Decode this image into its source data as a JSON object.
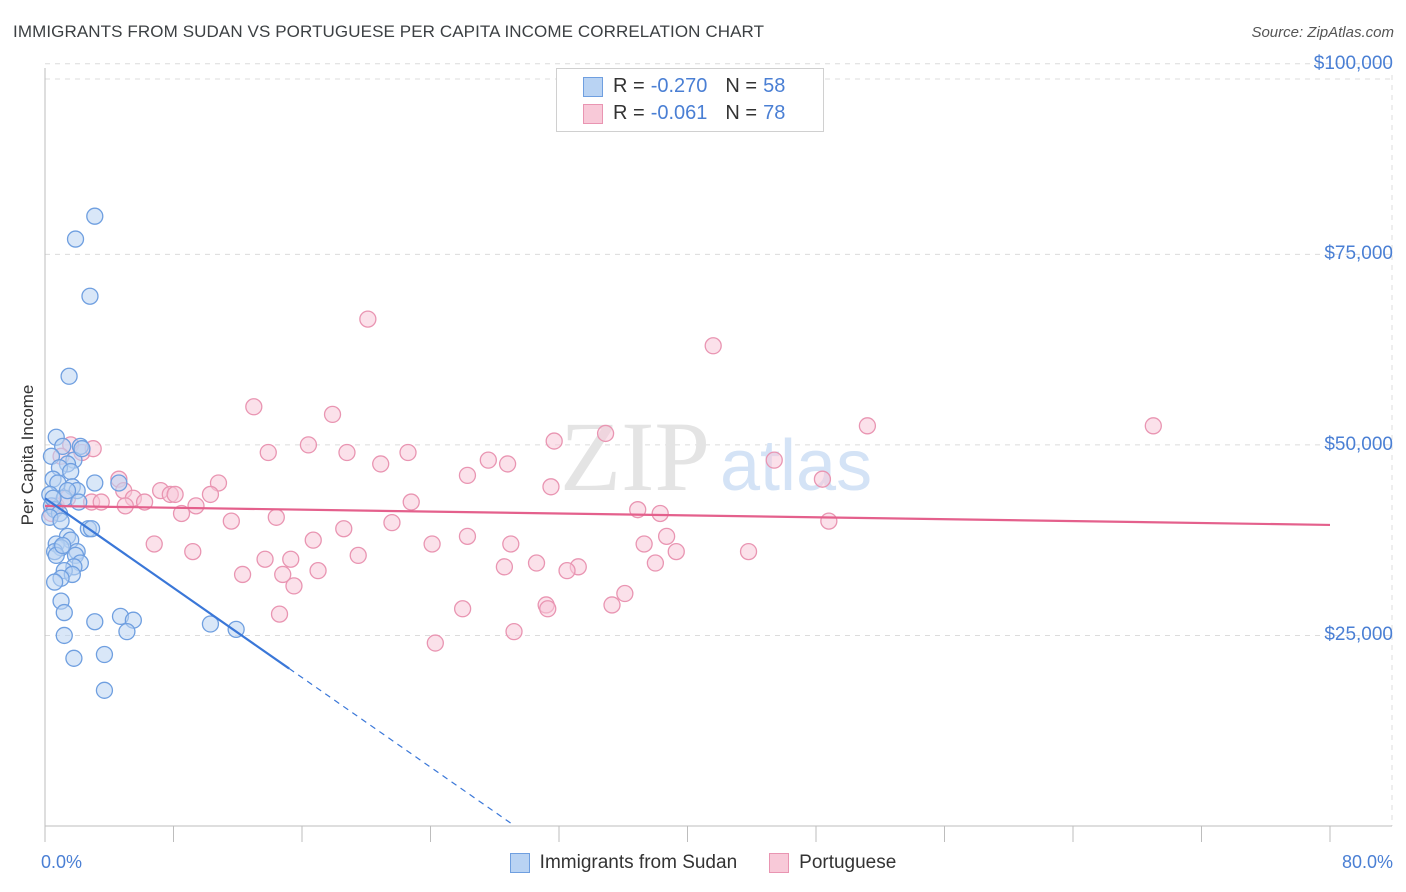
{
  "header": {
    "title": "IMMIGRANTS FROM SUDAN VS PORTUGUESE PER CAPITA INCOME CORRELATION CHART",
    "source": "Source: ZipAtlas.com"
  },
  "watermark": {
    "zip": "ZIP",
    "atlas": "atlas"
  },
  "stats": {
    "sudan": {
      "r_label": "R =",
      "r_value": "-0.270",
      "n_label": "N =",
      "n_value": "58"
    },
    "portuguese": {
      "r_label": "R =",
      "r_value": "-0.061",
      "n_label": "N =",
      "n_value": "78"
    }
  },
  "legend": {
    "sudan": "Immigrants from Sudan",
    "portuguese": "Portuguese"
  },
  "colors": {
    "sudan_fill": "#b9d3f3",
    "sudan_stroke": "#6f9fe0",
    "sudan_line": "#3a77d8",
    "portuguese_fill": "#f8c9d8",
    "portuguese_stroke": "#e995b2",
    "portuguese_line": "#e4608c",
    "tick_text": "#4a7fd4",
    "grid": "#dcdcdc"
  },
  "chart_data": {
    "type": "scatter",
    "title": "IMMIGRANTS FROM SUDAN VS PORTUGUESE PER CAPITA INCOME CORRELATION CHART",
    "xlabel": "",
    "ylabel": "Per Capita Income",
    "xlim": [
      0,
      80
    ],
    "ylim": [
      0,
      105000
    ],
    "x_tick_labels": [
      {
        "value": 0,
        "label": "0.0%"
      },
      {
        "value": 80,
        "label": "80.0%"
      }
    ],
    "y_tick_labels": [
      {
        "value": 25000,
        "label": "$25,000"
      },
      {
        "value": 50000,
        "label": "$50,000"
      },
      {
        "value": 75000,
        "label": "$75,000"
      },
      {
        "value": 100000,
        "label": "$100,000"
      }
    ],
    "grid": true,
    "series": [
      {
        "name": "Immigrants from Sudan",
        "r": -0.27,
        "n": 58,
        "trend": {
          "x0": 0,
          "y0": 43000,
          "x_solid_end": 15.2,
          "x_dash_end": 29.2,
          "slope": -1470
        },
        "points": [
          [
            3.1,
            80000
          ],
          [
            1.9,
            77000
          ],
          [
            2.8,
            69500
          ],
          [
            1.5,
            59000
          ],
          [
            0.7,
            51000
          ],
          [
            1.1,
            49800
          ],
          [
            2.2,
            49800
          ],
          [
            0.4,
            48500
          ],
          [
            1.8,
            48000
          ],
          [
            1.4,
            47500
          ],
          [
            0.9,
            47000
          ],
          [
            1.6,
            46500
          ],
          [
            0.5,
            45500
          ],
          [
            0.8,
            45000
          ],
          [
            3.1,
            45000
          ],
          [
            4.6,
            45000
          ],
          [
            1.7,
            44500
          ],
          [
            2.0,
            44000
          ],
          [
            0.3,
            43500
          ],
          [
            1.2,
            43000
          ],
          [
            2.1,
            42500
          ],
          [
            0.4,
            42000
          ],
          [
            0.6,
            41500
          ],
          [
            0.9,
            41000
          ],
          [
            0.3,
            40500
          ],
          [
            1.0,
            40000
          ],
          [
            2.7,
            39000
          ],
          [
            2.9,
            39000
          ],
          [
            1.4,
            38000
          ],
          [
            1.6,
            37500
          ],
          [
            0.7,
            37000
          ],
          [
            1.0,
            36500
          ],
          [
            0.6,
            36000
          ],
          [
            2.0,
            36000
          ],
          [
            0.7,
            35500
          ],
          [
            1.9,
            35500
          ],
          [
            2.2,
            34500
          ],
          [
            1.8,
            34000
          ],
          [
            1.2,
            33500
          ],
          [
            1.7,
            33000
          ],
          [
            1.0,
            32500
          ],
          [
            0.6,
            32000
          ],
          [
            1.0,
            29500
          ],
          [
            1.2,
            28000
          ],
          [
            4.7,
            27500
          ],
          [
            5.5,
            27000
          ],
          [
            3.1,
            26800
          ],
          [
            10.3,
            26500
          ],
          [
            11.9,
            25800
          ],
          [
            5.1,
            25500
          ],
          [
            1.2,
            25000
          ],
          [
            3.7,
            22500
          ],
          [
            1.8,
            22000
          ],
          [
            3.7,
            17800
          ],
          [
            1.4,
            44000
          ],
          [
            0.5,
            43000
          ],
          [
            2.3,
            49500
          ],
          [
            1.1,
            36800
          ]
        ]
      },
      {
        "name": "Portuguese",
        "r": -0.061,
        "n": 78,
        "trend": {
          "x0": 0,
          "y0": 42000,
          "x_end": 80,
          "y_end": 39500
        },
        "points": [
          [
            20.1,
            66500
          ],
          [
            41.6,
            63000
          ],
          [
            13.0,
            55000
          ],
          [
            17.9,
            54000
          ],
          [
            51.2,
            52500
          ],
          [
            69.0,
            52500
          ],
          [
            34.9,
            51500
          ],
          [
            31.7,
            50500
          ],
          [
            16.4,
            50000
          ],
          [
            1.6,
            50000
          ],
          [
            2.3,
            49000
          ],
          [
            13.9,
            49000
          ],
          [
            18.8,
            49000
          ],
          [
            22.6,
            49000
          ],
          [
            1.0,
            48500
          ],
          [
            27.6,
            48000
          ],
          [
            45.4,
            48000
          ],
          [
            20.9,
            47500
          ],
          [
            28.8,
            47500
          ],
          [
            26.3,
            46000
          ],
          [
            4.6,
            45500
          ],
          [
            48.4,
            45500
          ],
          [
            10.8,
            45000
          ],
          [
            31.5,
            44500
          ],
          [
            4.9,
            44000
          ],
          [
            7.2,
            44000
          ],
          [
            7.8,
            43500
          ],
          [
            8.1,
            43500
          ],
          [
            10.3,
            43500
          ],
          [
            5.5,
            43000
          ],
          [
            2.9,
            42500
          ],
          [
            3.5,
            42500
          ],
          [
            6.2,
            42500
          ],
          [
            22.8,
            42500
          ],
          [
            5.0,
            42000
          ],
          [
            9.4,
            42000
          ],
          [
            36.9,
            41500
          ],
          [
            38.3,
            41000
          ],
          [
            8.5,
            41000
          ],
          [
            14.4,
            40500
          ],
          [
            11.6,
            40000
          ],
          [
            48.8,
            40000
          ],
          [
            21.6,
            39800
          ],
          [
            18.6,
            39000
          ],
          [
            26.3,
            38000
          ],
          [
            38.7,
            38000
          ],
          [
            16.7,
            37500
          ],
          [
            24.1,
            37000
          ],
          [
            29.0,
            37000
          ],
          [
            6.8,
            37000
          ],
          [
            37.3,
            37000
          ],
          [
            39.3,
            36000
          ],
          [
            43.8,
            36000
          ],
          [
            9.2,
            36000
          ],
          [
            19.5,
            35500
          ],
          [
            13.7,
            35000
          ],
          [
            15.3,
            35000
          ],
          [
            30.6,
            34500
          ],
          [
            28.6,
            34000
          ],
          [
            33.2,
            34000
          ],
          [
            38.0,
            34500
          ],
          [
            17.0,
            33500
          ],
          [
            12.3,
            33000
          ],
          [
            32.5,
            33500
          ],
          [
            14.8,
            33000
          ],
          [
            15.5,
            31500
          ],
          [
            36.1,
            30500
          ],
          [
            31.2,
            29000
          ],
          [
            35.3,
            29000
          ],
          [
            26.0,
            28500
          ],
          [
            31.3,
            28500
          ],
          [
            14.6,
            27800
          ],
          [
            29.2,
            25500
          ],
          [
            24.3,
            24000
          ],
          [
            0.7,
            42000
          ],
          [
            3.0,
            49500
          ],
          [
            1.4,
            43000
          ],
          [
            0.4,
            41000
          ]
        ]
      }
    ]
  }
}
